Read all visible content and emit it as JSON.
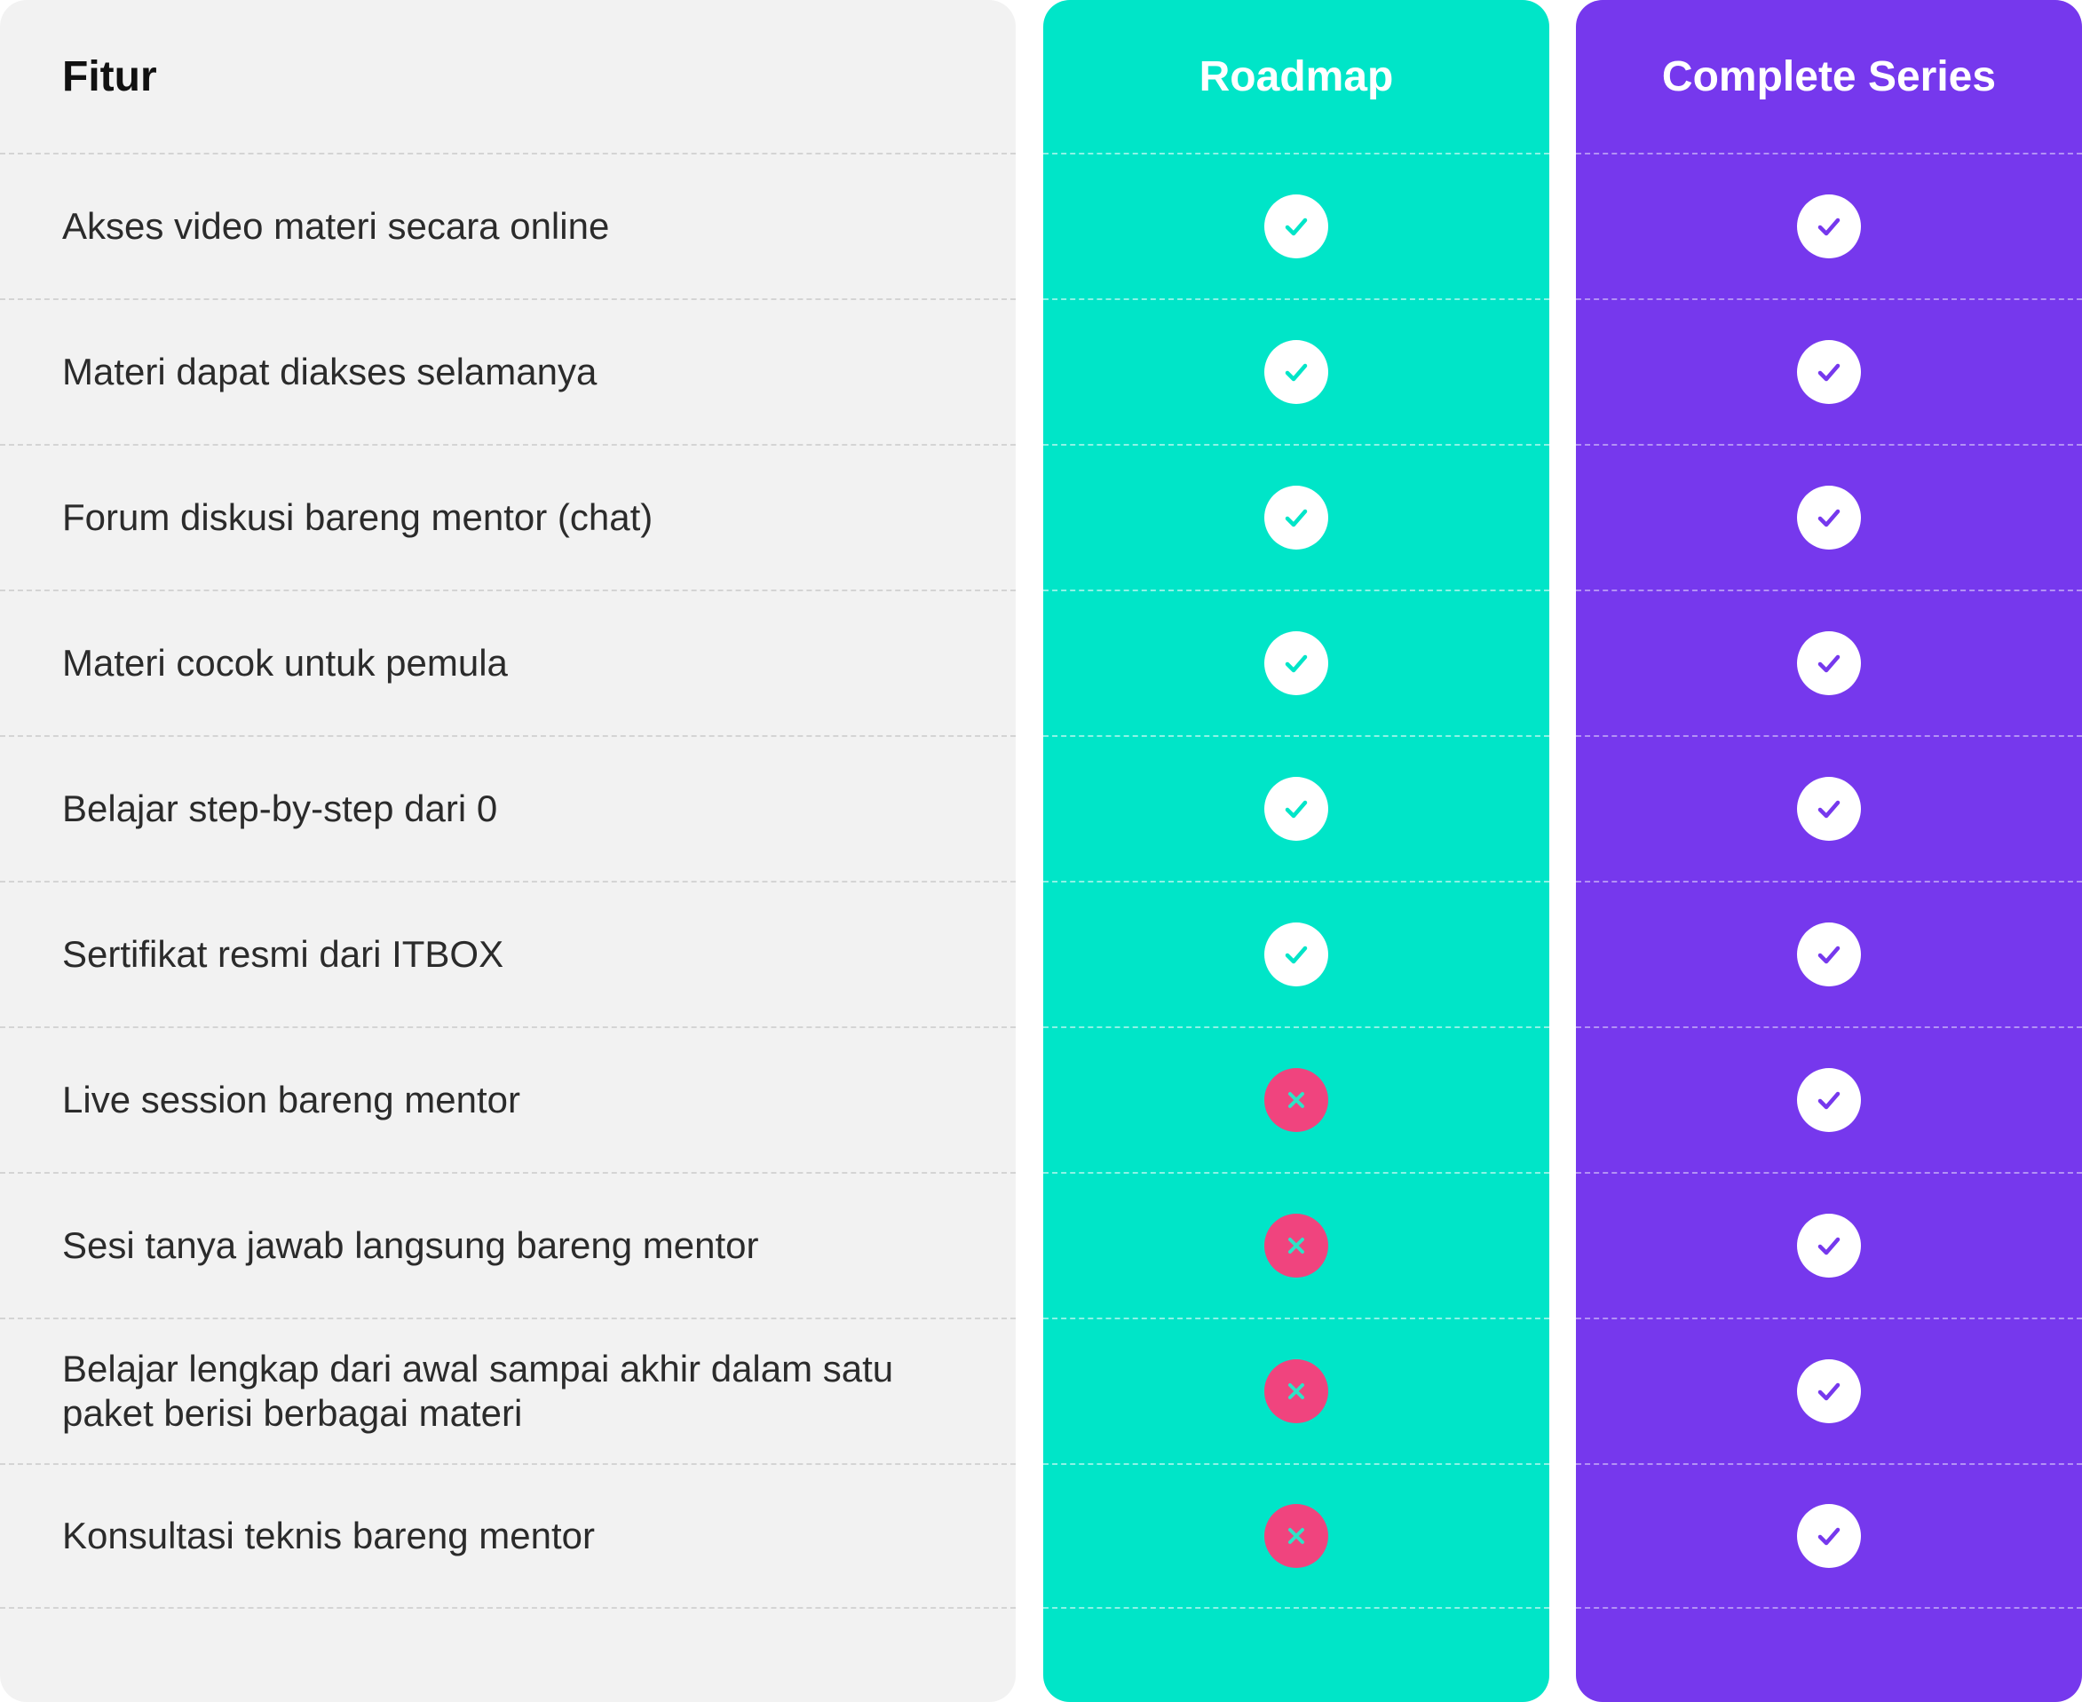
{
  "colors": {
    "feature_column_bg": "#f2f2f2",
    "roadmap_bg": "#00e5c8",
    "complete_series_bg": "#7638ed",
    "check_badge_bg": "#ffffff",
    "cross_badge_bg": "#f0447e",
    "cross_mark": "#2ee3c5"
  },
  "headers": {
    "feature": "Fitur",
    "roadmap": "Roadmap",
    "complete_series": "Complete Series"
  },
  "features": [
    {
      "label": "Akses video materi secara online",
      "roadmap": "check-icon",
      "complete_series": "check-icon"
    },
    {
      "label": "Materi dapat diakses selamanya",
      "roadmap": "check-icon",
      "complete_series": "check-icon"
    },
    {
      "label": "Forum diskusi bareng mentor (chat)",
      "roadmap": "check-icon",
      "complete_series": "check-icon"
    },
    {
      "label": "Materi cocok untuk pemula",
      "roadmap": "check-icon",
      "complete_series": "check-icon"
    },
    {
      "label": "Belajar step-by-step dari 0",
      "roadmap": "check-icon",
      "complete_series": "check-icon"
    },
    {
      "label": "Sertifikat resmi dari ITBOX",
      "roadmap": "check-icon",
      "complete_series": "check-icon"
    },
    {
      "label": "Live session bareng mentor",
      "roadmap": "cross-icon",
      "complete_series": "check-icon"
    },
    {
      "label": "Sesi tanya jawab langsung bareng mentor",
      "roadmap": "cross-icon",
      "complete_series": "check-icon"
    },
    {
      "label": "Belajar lengkap dari awal sampai akhir dalam satu paket berisi berbagai materi",
      "roadmap": "cross-icon",
      "complete_series": "check-icon"
    },
    {
      "label": "Konsultasi teknis bareng mentor",
      "roadmap": "cross-icon",
      "complete_series": "check-icon"
    }
  ]
}
